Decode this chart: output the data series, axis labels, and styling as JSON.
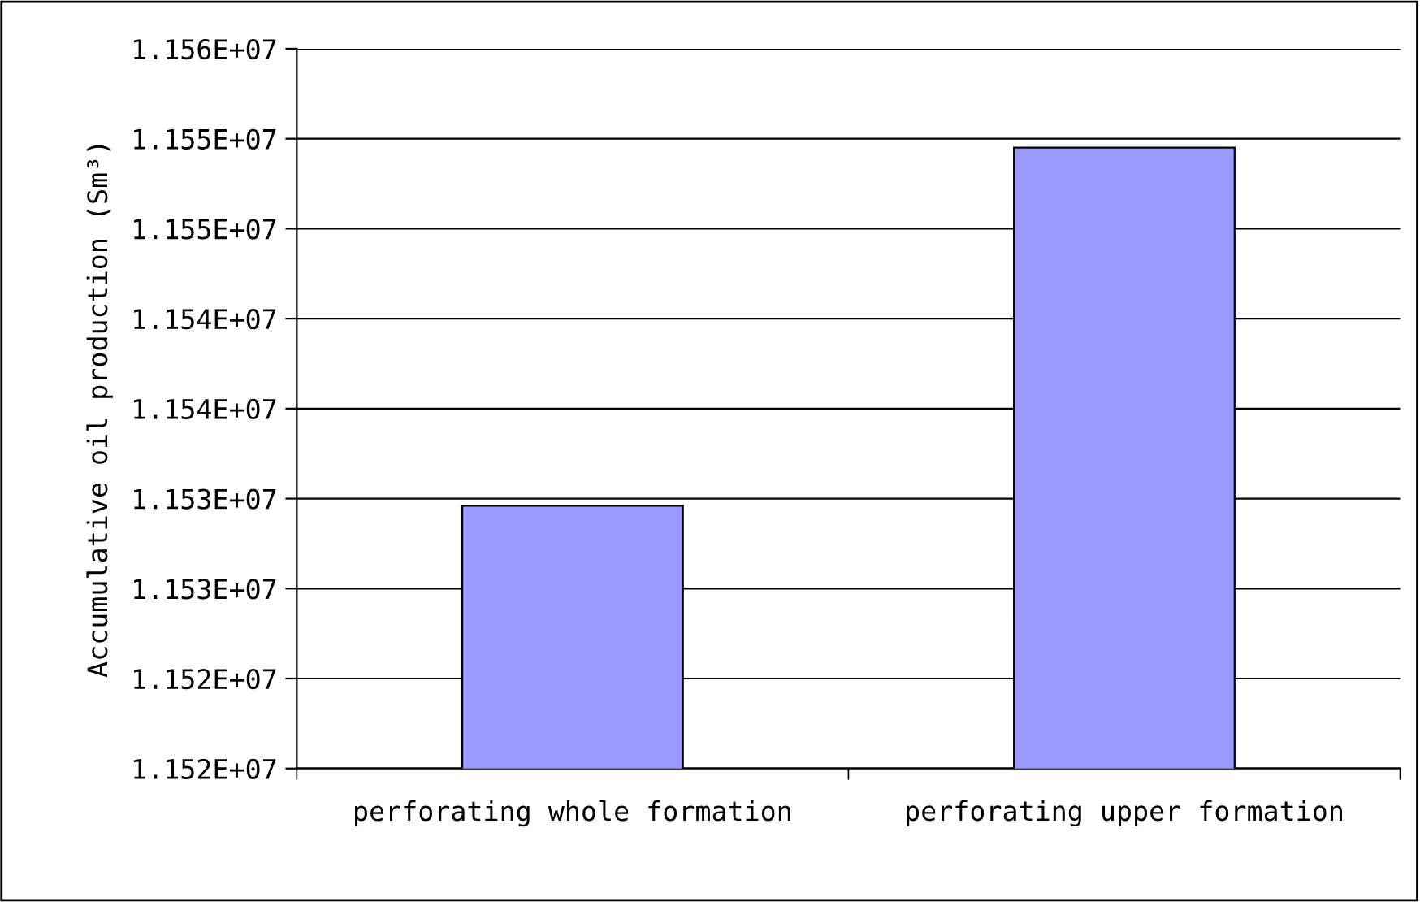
{
  "chart_data": {
    "type": "bar",
    "ylabel": "Accumulative oil production (Sm³)",
    "categories": [
      "perforating whole formation",
      "perforating upper formation"
    ],
    "values": [
      11529600,
      11549500
    ],
    "color": "#9999ff",
    "ylim": [
      11515000,
      11555000
    ],
    "yticks": [
      {
        "value": 11515000,
        "label": "1.152E+07"
      },
      {
        "value": 11520000,
        "label": "1.152E+07"
      },
      {
        "value": 11525000,
        "label": "1.153E+07"
      },
      {
        "value": 11530000,
        "label": "1.153E+07"
      },
      {
        "value": 11535000,
        "label": "1.154E+07"
      },
      {
        "value": 11540000,
        "label": "1.154E+07"
      },
      {
        "value": 11545000,
        "label": "1.155E+07"
      },
      {
        "value": 11550000,
        "label": "1.155E+07"
      },
      {
        "value": 11555000,
        "label": "1.156E+07"
      }
    ],
    "grid": "y",
    "legend": false
  }
}
